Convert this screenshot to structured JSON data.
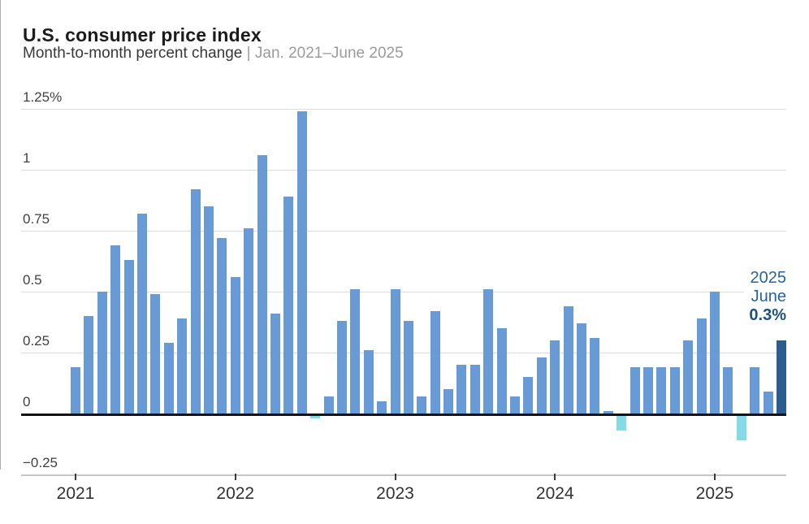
{
  "header": {
    "title": "U.S. consumer price index",
    "subtitle": "Month-to-month percent change ",
    "subtitle_range": "| Jan. 2021–June 2025"
  },
  "annotation": {
    "year": "2025",
    "month": "June",
    "value": "0.3%"
  },
  "colors": {
    "bar": "#689bd5",
    "bar_negative": "#84dbe7",
    "bar_highlight": "#2b5d8e",
    "annotation_text": "#27649b",
    "grid": "#dcdcdc",
    "zero_line": "#141414",
    "title_text": "#1c1c1c",
    "subtitle_gray": "#9b9b9b"
  },
  "chart_data": {
    "type": "bar",
    "title": "U.S. consumer price index",
    "ylabel": "Month-to-month percent change",
    "xlabel": "",
    "ylim": [
      -0.25,
      1.25
    ],
    "grid": true,
    "legend": false,
    "y_ticks": [
      {
        "label": "1.25%",
        "value": 1.25
      },
      {
        "label": "1",
        "value": 1.0
      },
      {
        "label": "0.75",
        "value": 0.75
      },
      {
        "label": "0.5",
        "value": 0.5
      },
      {
        "label": "0.25",
        "value": 0.25
      },
      {
        "label": "0",
        "value": 0
      },
      {
        "label": "−0.25",
        "value": -0.25
      }
    ],
    "x_years": [
      {
        "label": "2021",
        "month_index": 0
      },
      {
        "label": "2022",
        "month_index": 12
      },
      {
        "label": "2023",
        "month_index": 24
      },
      {
        "label": "2024",
        "month_index": 36
      },
      {
        "label": "2025",
        "month_index": 48
      }
    ],
    "categories": [
      "Jan. 2021",
      "Feb. 2021",
      "Mar. 2021",
      "Apr. 2021",
      "May 2021",
      "June 2021",
      "July 2021",
      "Aug. 2021",
      "Sep. 2021",
      "Oct. 2021",
      "Nov. 2021",
      "Dec. 2021",
      "Jan. 2022",
      "Feb. 2022",
      "Mar. 2022",
      "Apr. 2022",
      "May 2022",
      "June 2022",
      "July 2022",
      "Aug. 2022",
      "Sep. 2022",
      "Oct. 2022",
      "Nov. 2022",
      "Dec. 2022",
      "Jan. 2023",
      "Feb. 2023",
      "Mar. 2023",
      "Apr. 2023",
      "May 2023",
      "June 2023",
      "July 2023",
      "Aug. 2023",
      "Sep. 2023",
      "Oct. 2023",
      "Nov. 2023",
      "Dec. 2023",
      "Jan. 2024",
      "Feb. 2024",
      "Mar. 2024",
      "Apr. 2024",
      "May 2024",
      "June 2024",
      "July 2024",
      "Aug. 2024",
      "Sep. 2024",
      "Oct. 2024",
      "Nov. 2024",
      "Dec. 2024",
      "Jan. 2025",
      "Feb. 2025",
      "Mar. 2025",
      "Apr. 2025",
      "May 2025",
      "June 2025"
    ],
    "values": [
      0.19,
      0.4,
      0.5,
      0.69,
      0.63,
      0.82,
      0.49,
      0.29,
      0.39,
      0.92,
      0.85,
      0.72,
      0.56,
      0.76,
      1.06,
      0.41,
      0.89,
      1.24,
      -0.01,
      0.07,
      0.38,
      0.51,
      0.26,
      0.05,
      0.51,
      0.38,
      0.07,
      0.42,
      0.1,
      0.2,
      0.2,
      0.51,
      0.35,
      0.07,
      0.15,
      0.23,
      0.3,
      0.44,
      0.37,
      0.31,
      0.01,
      -0.06,
      0.19,
      0.19,
      0.19,
      0.19,
      0.3,
      0.39,
      0.5,
      0.19,
      -0.1,
      0.19,
      0.09,
      0.3
    ],
    "highlight_last_bar": true,
    "annotation": {
      "lines": [
        "2025",
        "June",
        "0.3%"
      ],
      "target": "June 2025"
    }
  }
}
